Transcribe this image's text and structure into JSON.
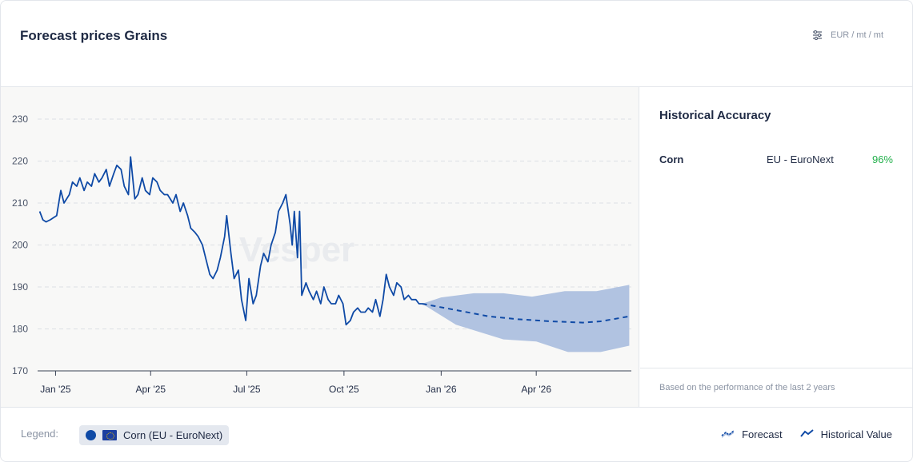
{
  "header": {
    "title": "Forecast prices Grains",
    "unit": "EUR / mt / mt",
    "unit_icon": "sliders-icon"
  },
  "watermark": "Vesper",
  "accuracy": {
    "title": "Historical Accuracy",
    "rows": [
      {
        "name": "Corn",
        "market": "EU - EuroNext",
        "value": "96%"
      }
    ],
    "footnote": "Based on the performance of the last 2 years"
  },
  "legend": {
    "label": "Legend:",
    "chip": "Corn (EU - EuroNext)",
    "forecast": "Forecast",
    "historical": "Historical Value"
  },
  "colors": {
    "line": "#0f4aa6",
    "band": "#b1c3e1",
    "accuracy_good": "#22b04b"
  },
  "chart_data": {
    "type": "line",
    "y_ticks": [
      170,
      180,
      190,
      200,
      210,
      220,
      230
    ],
    "ylim": [
      170,
      230
    ],
    "x_ticks": [
      "Jan '25",
      "Apr '25",
      "Jul '25",
      "Oct '25",
      "Jan '26",
      "Apr '26"
    ],
    "x_tick_dates": [
      "2025-01-01",
      "2025-04-01",
      "2025-07-01",
      "2025-10-01",
      "2026-01-01",
      "2026-04-01"
    ],
    "xlim": [
      "2024-12-15",
      "2026-06-30"
    ],
    "grid": "horizontal dashed",
    "series": [
      {
        "kind": "historical",
        "points": [
          [
            "2024-12-17",
            208
          ],
          [
            "2024-12-20",
            206
          ],
          [
            "2024-12-23",
            205.5
          ],
          [
            "2024-12-27",
            206
          ],
          [
            "2025-01-02",
            207
          ],
          [
            "2025-01-06",
            213
          ],
          [
            "2025-01-09",
            210
          ],
          [
            "2025-01-14",
            212
          ],
          [
            "2025-01-17",
            215
          ],
          [
            "2025-01-21",
            214
          ],
          [
            "2025-01-24",
            216
          ],
          [
            "2025-01-28",
            213
          ],
          [
            "2025-01-31",
            215
          ],
          [
            "2025-02-04",
            214
          ],
          [
            "2025-02-07",
            217
          ],
          [
            "2025-02-11",
            215
          ],
          [
            "2025-02-14",
            216
          ],
          [
            "2025-02-18",
            218
          ],
          [
            "2025-02-21",
            214
          ],
          [
            "2025-02-25",
            217
          ],
          [
            "2025-02-28",
            219
          ],
          [
            "2025-03-04",
            218
          ],
          [
            "2025-03-07",
            214
          ],
          [
            "2025-03-11",
            212
          ],
          [
            "2025-03-13",
            221
          ],
          [
            "2025-03-17",
            211
          ],
          [
            "2025-03-20",
            212
          ],
          [
            "2025-03-24",
            216
          ],
          [
            "2025-03-27",
            213
          ],
          [
            "2025-03-31",
            212
          ],
          [
            "2025-04-03",
            216
          ],
          [
            "2025-04-07",
            215
          ],
          [
            "2025-04-10",
            213
          ],
          [
            "2025-04-14",
            212
          ],
          [
            "2025-04-17",
            212
          ],
          [
            "2025-04-22",
            210
          ],
          [
            "2025-04-25",
            212
          ],
          [
            "2025-04-29",
            208
          ],
          [
            "2025-05-02",
            210
          ],
          [
            "2025-05-06",
            207
          ],
          [
            "2025-05-09",
            204
          ],
          [
            "2025-05-13",
            203
          ],
          [
            "2025-05-16",
            202
          ],
          [
            "2025-05-20",
            200
          ],
          [
            "2025-05-23",
            197
          ],
          [
            "2025-05-27",
            193
          ],
          [
            "2025-05-30",
            192
          ],
          [
            "2025-06-03",
            194
          ],
          [
            "2025-06-06",
            197
          ],
          [
            "2025-06-10",
            202
          ],
          [
            "2025-06-12",
            207
          ],
          [
            "2025-06-16",
            198
          ],
          [
            "2025-06-19",
            192
          ],
          [
            "2025-06-23",
            194
          ],
          [
            "2025-06-26",
            187
          ],
          [
            "2025-06-30",
            182
          ],
          [
            "2025-07-03",
            192
          ],
          [
            "2025-07-07",
            186
          ],
          [
            "2025-07-10",
            188
          ],
          [
            "2025-07-14",
            195
          ],
          [
            "2025-07-17",
            198
          ],
          [
            "2025-07-21",
            196
          ],
          [
            "2025-07-24",
            200
          ],
          [
            "2025-07-28",
            203
          ],
          [
            "2025-07-31",
            208
          ],
          [
            "2025-08-04",
            210
          ],
          [
            "2025-08-07",
            212
          ],
          [
            "2025-08-11",
            205
          ],
          [
            "2025-08-13",
            200
          ],
          [
            "2025-08-15",
            208
          ],
          [
            "2025-08-18",
            197
          ],
          [
            "2025-08-20",
            208
          ],
          [
            "2025-08-22",
            188
          ],
          [
            "2025-08-26",
            191
          ],
          [
            "2025-08-29",
            189
          ],
          [
            "2025-09-02",
            187
          ],
          [
            "2025-09-05",
            189
          ],
          [
            "2025-09-09",
            186
          ],
          [
            "2025-09-12",
            190
          ],
          [
            "2025-09-16",
            187
          ],
          [
            "2025-09-19",
            186
          ],
          [
            "2025-09-23",
            186
          ],
          [
            "2025-09-26",
            188
          ],
          [
            "2025-09-30",
            186
          ],
          [
            "2025-10-03",
            181
          ],
          [
            "2025-10-07",
            182
          ],
          [
            "2025-10-10",
            184
          ],
          [
            "2025-10-14",
            185
          ],
          [
            "2025-10-17",
            184
          ],
          [
            "2025-10-21",
            184
          ],
          [
            "2025-10-24",
            185
          ],
          [
            "2025-10-28",
            184
          ],
          [
            "2025-10-31",
            187
          ],
          [
            "2025-11-04",
            183
          ],
          [
            "2025-11-07",
            187
          ],
          [
            "2025-11-10",
            193
          ],
          [
            "2025-11-13",
            190
          ],
          [
            "2025-11-17",
            188
          ],
          [
            "2025-11-20",
            191
          ],
          [
            "2025-11-24",
            190
          ],
          [
            "2025-11-27",
            187
          ],
          [
            "2025-12-01",
            188
          ],
          [
            "2025-12-04",
            187
          ],
          [
            "2025-12-08",
            187
          ],
          [
            "2025-12-11",
            186
          ],
          [
            "2025-12-14",
            186
          ]
        ]
      },
      {
        "kind": "forecast",
        "points": [
          [
            "2025-12-14",
            186
          ],
          [
            "2026-01-15",
            184.5
          ],
          [
            "2026-02-15",
            183
          ],
          [
            "2026-03-15",
            182.3
          ],
          [
            "2026-04-15",
            181.8
          ],
          [
            "2026-05-15",
            181.5
          ],
          [
            "2026-06-01",
            181.8
          ],
          [
            "2026-06-28",
            183
          ]
        ],
        "upper": [
          [
            "2025-12-14",
            186
          ],
          [
            "2026-01-01",
            187.5
          ],
          [
            "2026-02-01",
            188.5
          ],
          [
            "2026-03-01",
            188.5
          ],
          [
            "2026-03-28",
            187.7
          ],
          [
            "2026-04-28",
            189
          ],
          [
            "2026-05-28",
            189
          ],
          [
            "2026-06-28",
            190.5
          ]
        ],
        "lower": [
          [
            "2025-12-14",
            186
          ],
          [
            "2026-01-15",
            181
          ],
          [
            "2026-03-01",
            177.5
          ],
          [
            "2026-04-01",
            177
          ],
          [
            "2026-05-01",
            174.5
          ],
          [
            "2026-06-01",
            174.5
          ],
          [
            "2026-06-28",
            176
          ]
        ]
      }
    ]
  }
}
